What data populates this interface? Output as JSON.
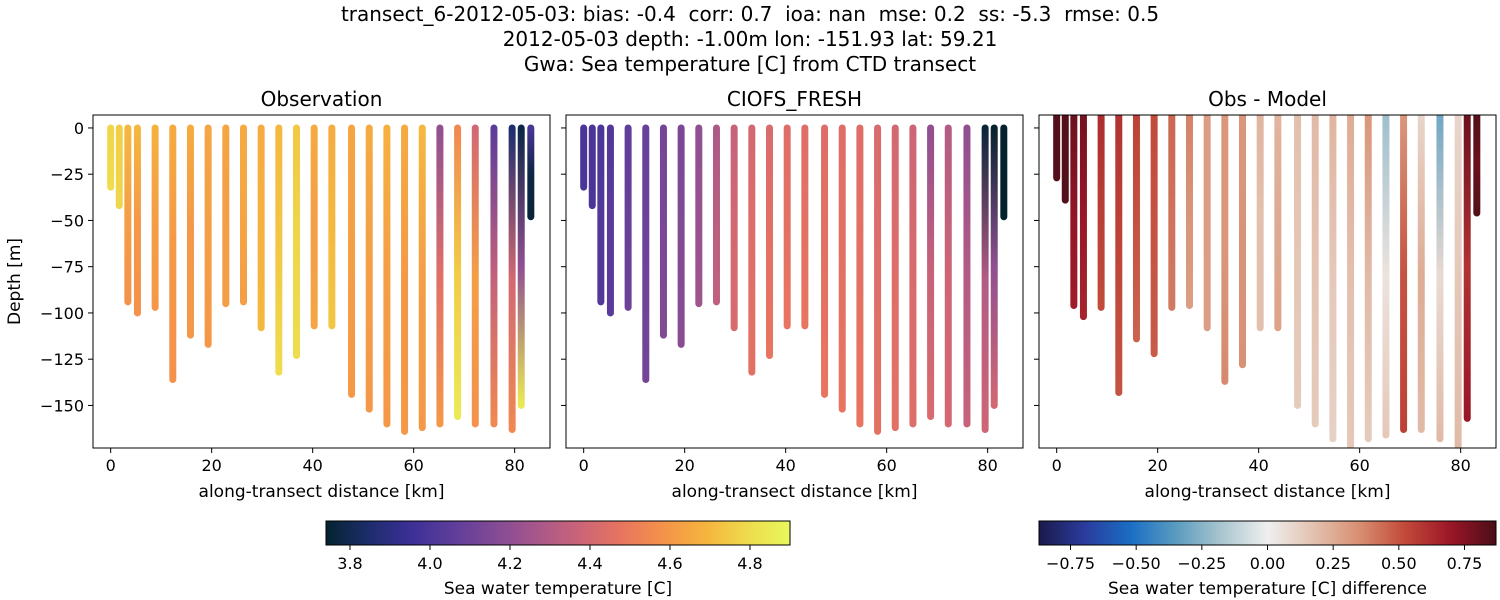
{
  "title_lines": [
    "transect_6-2012-05-03: bias: -0.4  corr: 0.7  ioa: nan  mse: 0.2  ss: -5.3  rmse: 0.5",
    "2012-05-03 depth: -1.00m lon: -151.93 lat: 59.21",
    "Gwa: Sea temperature [C] from CTD transect"
  ],
  "chart_data": [
    {
      "type": "scatter",
      "title": "Observation",
      "xlabel": "along-transect distance [km]",
      "ylabel": "Depth [m]",
      "xlim": [
        -3.5,
        87
      ],
      "ylim": [
        -173,
        7
      ],
      "xticks": [
        0,
        20,
        40,
        60,
        80
      ],
      "yticks": [
        0,
        -25,
        -50,
        -75,
        -100,
        -125,
        -150
      ],
      "colormap": "thermal",
      "casts": [
        {
          "x": 0,
          "bottom": -32,
          "values": [
            4.78,
            4.8
          ]
        },
        {
          "x": 1.7,
          "bottom": -42,
          "values": [
            4.76,
            4.78
          ]
        },
        {
          "x": 3.4,
          "bottom": -94,
          "values": [
            4.7,
            4.62,
            4.58
          ]
        },
        {
          "x": 5.3,
          "bottom": -100,
          "values": [
            4.7,
            4.6,
            4.58
          ]
        },
        {
          "x": 8.8,
          "bottom": -97,
          "values": [
            4.68,
            4.62,
            4.6
          ]
        },
        {
          "x": 12.3,
          "bottom": -136,
          "values": [
            4.66,
            4.6,
            4.58
          ]
        },
        {
          "x": 15.8,
          "bottom": -112,
          "values": [
            4.66,
            4.6,
            4.6
          ]
        },
        {
          "x": 19.3,
          "bottom": -117,
          "values": [
            4.64,
            4.62,
            4.6
          ]
        },
        {
          "x": 22.8,
          "bottom": -95,
          "values": [
            4.64,
            4.62,
            4.62
          ]
        },
        {
          "x": 26.3,
          "bottom": -94,
          "values": [
            4.66,
            4.64,
            4.62
          ]
        },
        {
          "x": 29.8,
          "bottom": -108,
          "values": [
            4.66,
            4.68,
            4.7
          ]
        },
        {
          "x": 33.3,
          "bottom": -132,
          "values": [
            4.7,
            4.74,
            4.8
          ]
        },
        {
          "x": 36.8,
          "bottom": -123,
          "values": [
            4.74,
            4.78,
            4.8
          ]
        },
        {
          "x": 40.3,
          "bottom": -107,
          "values": [
            4.66,
            4.62,
            4.64
          ]
        },
        {
          "x": 43.8,
          "bottom": -107,
          "values": [
            4.66,
            4.7,
            4.74
          ]
        },
        {
          "x": 47.7,
          "bottom": -144,
          "values": [
            4.64,
            4.62,
            4.6
          ]
        },
        {
          "x": 51.2,
          "bottom": -152,
          "values": [
            4.66,
            4.62,
            4.6
          ]
        },
        {
          "x": 54.7,
          "bottom": -160,
          "values": [
            4.68,
            4.62,
            4.6
          ]
        },
        {
          "x": 58.2,
          "bottom": -164,
          "values": [
            4.66,
            4.6,
            4.6
          ]
        },
        {
          "x": 61.7,
          "bottom": -162,
          "values": [
            4.7,
            4.62,
            4.6
          ]
        },
        {
          "x": 65.2,
          "bottom": -160,
          "values": [
            4.2,
            4.45,
            4.6
          ]
        },
        {
          "x": 68.7,
          "bottom": -156,
          "values": [
            4.55,
            4.75,
            4.85
          ]
        },
        {
          "x": 72.2,
          "bottom": -160,
          "values": [
            4.4,
            4.62,
            4.58
          ]
        },
        {
          "x": 75.9,
          "bottom": -160,
          "values": [
            4.05,
            4.35,
            4.55
          ]
        },
        {
          "x": 79.5,
          "bottom": -163,
          "values": [
            3.85,
            4.4,
            4.55
          ]
        },
        {
          "x": 81.3,
          "bottom": -150,
          "values": [
            3.78,
            4.2,
            4.85
          ]
        },
        {
          "x": 83.2,
          "bottom": -48,
          "values": [
            4.0,
            3.78,
            3.76
          ]
        }
      ]
    },
    {
      "type": "scatter",
      "title": "CIOFS_FRESH",
      "xlabel": "along-transect distance [km]",
      "ylabel": "",
      "xlim": [
        -3.5,
        87
      ],
      "ylim": [
        -173,
        7
      ],
      "xticks": [
        0,
        20,
        40,
        60,
        80
      ],
      "colormap": "thermal",
      "casts": [
        {
          "x": 0,
          "bottom": -32,
          "values": [
            4.0,
            4.0
          ]
        },
        {
          "x": 1.7,
          "bottom": -42,
          "values": [
            4.0,
            4.0
          ]
        },
        {
          "x": 3.4,
          "bottom": -94,
          "values": [
            4.0,
            4.02,
            4.02
          ]
        },
        {
          "x": 5.3,
          "bottom": -100,
          "values": [
            4.02,
            4.04,
            4.04
          ]
        },
        {
          "x": 8.8,
          "bottom": -97,
          "values": [
            4.06,
            4.08,
            4.1
          ]
        },
        {
          "x": 12.3,
          "bottom": -136,
          "values": [
            4.08,
            4.1,
            4.12
          ]
        },
        {
          "x": 15.8,
          "bottom": -112,
          "values": [
            4.12,
            4.14,
            4.16
          ]
        },
        {
          "x": 19.3,
          "bottom": -117,
          "values": [
            4.14,
            4.16,
            4.18
          ]
        },
        {
          "x": 22.8,
          "bottom": -95,
          "values": [
            4.2,
            4.22,
            4.24
          ]
        },
        {
          "x": 26.3,
          "bottom": -94,
          "values": [
            4.28,
            4.32,
            4.34
          ]
        },
        {
          "x": 29.8,
          "bottom": -108,
          "values": [
            4.36,
            4.4,
            4.42
          ]
        },
        {
          "x": 33.3,
          "bottom": -132,
          "values": [
            4.4,
            4.44,
            4.46
          ]
        },
        {
          "x": 36.8,
          "bottom": -123,
          "values": [
            4.42,
            4.46,
            4.48
          ]
        },
        {
          "x": 40.3,
          "bottom": -107,
          "values": [
            4.44,
            4.46,
            4.48
          ]
        },
        {
          "x": 43.8,
          "bottom": -107,
          "values": [
            4.44,
            4.46,
            4.48
          ]
        },
        {
          "x": 47.7,
          "bottom": -144,
          "values": [
            4.44,
            4.46,
            4.48
          ]
        },
        {
          "x": 51.2,
          "bottom": -152,
          "values": [
            4.44,
            4.46,
            4.48
          ]
        },
        {
          "x": 54.7,
          "bottom": -160,
          "values": [
            4.44,
            4.46,
            4.48
          ]
        },
        {
          "x": 58.2,
          "bottom": -164,
          "values": [
            4.42,
            4.44,
            4.46
          ]
        },
        {
          "x": 61.7,
          "bottom": -162,
          "values": [
            4.4,
            4.44,
            4.46
          ]
        },
        {
          "x": 65.2,
          "bottom": -160,
          "values": [
            4.38,
            4.42,
            4.44
          ]
        },
        {
          "x": 68.7,
          "bottom": -156,
          "values": [
            4.2,
            4.36,
            4.42
          ]
        },
        {
          "x": 72.2,
          "bottom": -160,
          "values": [
            4.3,
            4.38,
            4.4
          ]
        },
        {
          "x": 75.9,
          "bottom": -160,
          "values": [
            4.2,
            4.3,
            4.36
          ]
        },
        {
          "x": 79.5,
          "bottom": -163,
          "values": [
            3.76,
            4.3,
            4.38
          ]
        },
        {
          "x": 81.3,
          "bottom": -150,
          "values": [
            3.74,
            4.2,
            4.4
          ]
        },
        {
          "x": 83.2,
          "bottom": -48,
          "values": [
            3.74,
            3.74,
            3.74
          ]
        }
      ]
    },
    {
      "type": "scatter",
      "title": "Obs - Model",
      "xlabel": "along-transect distance [km]",
      "ylabel": "",
      "xlim": [
        -3.5,
        87
      ],
      "ylim": [
        -173,
        7
      ],
      "xticks": [
        0,
        20,
        40,
        60,
        80
      ],
      "colormap": "diff",
      "casts": [
        {
          "x": 0,
          "bottom": -27,
          "values": [
            0.85,
            0.85
          ]
        },
        {
          "x": 1.7,
          "bottom": -39,
          "values": [
            0.85,
            0.85
          ]
        },
        {
          "x": 3.4,
          "bottom": -96,
          "values": [
            0.8,
            0.72,
            0.68
          ]
        },
        {
          "x": 5.3,
          "bottom": -102,
          "values": [
            0.78,
            0.7,
            0.65
          ]
        },
        {
          "x": 8.8,
          "bottom": -97,
          "values": [
            0.62,
            0.56,
            0.52
          ]
        },
        {
          "x": 12.3,
          "bottom": -143,
          "values": [
            0.6,
            0.54,
            0.5
          ]
        },
        {
          "x": 15.8,
          "bottom": -114,
          "values": [
            0.55,
            0.5,
            0.46
          ]
        },
        {
          "x": 19.3,
          "bottom": -122,
          "values": [
            0.52,
            0.5,
            0.48
          ]
        },
        {
          "x": 22.8,
          "bottom": -97,
          "values": [
            0.45,
            0.42,
            0.4
          ]
        },
        {
          "x": 26.3,
          "bottom": -96,
          "values": [
            0.38,
            0.33,
            0.3
          ]
        },
        {
          "x": 29.8,
          "bottom": -108,
          "values": [
            0.3,
            0.3,
            0.3
          ]
        },
        {
          "x": 33.3,
          "bottom": -137,
          "values": [
            0.32,
            0.32,
            0.36
          ]
        },
        {
          "x": 36.8,
          "bottom": -128,
          "values": [
            0.32,
            0.33,
            0.34
          ]
        },
        {
          "x": 40.3,
          "bottom": -108,
          "values": [
            0.22,
            0.18,
            0.18
          ]
        },
        {
          "x": 43.8,
          "bottom": -108,
          "values": [
            0.22,
            0.26,
            0.28
          ]
        },
        {
          "x": 47.7,
          "bottom": -150,
          "values": [
            0.18,
            0.16,
            0.14
          ]
        },
        {
          "x": 51.2,
          "bottom": -160,
          "values": [
            0.2,
            0.17,
            0.14
          ]
        },
        {
          "x": 54.7,
          "bottom": -168,
          "values": [
            0.22,
            0.15,
            0.12
          ]
        },
        {
          "x": 58.2,
          "bottom": -172,
          "values": [
            0.25,
            0.18,
            0.15
          ]
        },
        {
          "x": 61.7,
          "bottom": -168,
          "values": [
            0.32,
            0.2,
            0.14
          ]
        },
        {
          "x": 65.2,
          "bottom": -166,
          "values": [
            -0.2,
            0.05,
            0.15
          ]
        },
        {
          "x": 68.7,
          "bottom": -163,
          "values": [
            0.32,
            0.5,
            0.55
          ]
        },
        {
          "x": 72.2,
          "bottom": -163,
          "values": [
            0.1,
            0.25,
            0.2
          ]
        },
        {
          "x": 75.9,
          "bottom": -168,
          "values": [
            -0.3,
            0.08,
            0.2
          ]
        },
        {
          "x": 79.5,
          "bottom": -172,
          "values": [
            0.1,
            0.15,
            0.2
          ]
        },
        {
          "x": 81.3,
          "bottom": -157,
          "values": [
            0.8,
            0.6,
            0.7
          ]
        },
        {
          "x": 83.2,
          "bottom": -46,
          "values": [
            0.85,
            0.8,
            0.85
          ]
        }
      ]
    }
  ],
  "colorbars": [
    {
      "label": "Sea water temperature [C]",
      "range": [
        3.74,
        4.9
      ],
      "ticks": [
        3.8,
        4.0,
        4.2,
        4.4,
        4.6,
        4.8
      ],
      "tick_labels": [
        "3.8",
        "4.0",
        "4.2",
        "4.4",
        "4.6",
        "4.8"
      ],
      "colormap": "thermal"
    },
    {
      "label": "Sea water temperature [C] difference",
      "range": [
        -0.87,
        0.87
      ],
      "ticks": [
        -0.75,
        -0.5,
        -0.25,
        0.0,
        0.25,
        0.5,
        0.75
      ],
      "tick_labels": [
        "−0.75",
        "−0.50",
        "−0.25",
        "0.00",
        "0.25",
        "0.50",
        "0.75"
      ],
      "colormap": "diff"
    }
  ],
  "colormaps": {
    "thermal": [
      "#04232e",
      "#1c2d6b",
      "#3b2f96",
      "#5e3d9a",
      "#824a95",
      "#a8578a",
      "#cb6478",
      "#e8745f",
      "#f4934a",
      "#f5b43e",
      "#eedc4c",
      "#e9f75c"
    ],
    "diff": [
      "#1a1a4a",
      "#2a3b9c",
      "#1a6ec4",
      "#5a9bbf",
      "#a9c6cf",
      "#efefef",
      "#e3c2b0",
      "#d88f72",
      "#c24a3a",
      "#9b1627",
      "#4a0e18"
    ]
  }
}
